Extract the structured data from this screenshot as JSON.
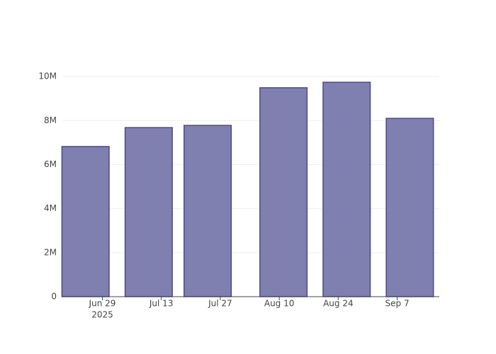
{
  "chart_data": {
    "type": "bar",
    "x": [
      "2025-06-25",
      "2025-07-10",
      "2025-07-24",
      "2025-08-11",
      "2025-08-26",
      "2025-09-10"
    ],
    "values": [
      6820000,
      7680000,
      7780000,
      9490000,
      9740000,
      8100000
    ],
    "color": "#7f7fb0",
    "edge_color": "#4b4b8c",
    "xlim": [
      "2025-06-19T12:00:00Z",
      "2025-09-17T00:00:00Z"
    ],
    "xticks": [
      {
        "value": "2025-06-29",
        "label": "Jun 29"
      },
      {
        "value": "2025-07-13",
        "label": "Jul 13"
      },
      {
        "value": "2025-07-27",
        "label": "Jul 27"
      },
      {
        "value": "2025-08-10",
        "label": "Aug 10"
      },
      {
        "value": "2025-08-24",
        "label": "Aug 24"
      },
      {
        "value": "2025-09-07",
        "label": "Sep 7"
      }
    ],
    "year_label": "2025",
    "ylim": [
      0,
      10260000
    ],
    "yticks": [
      0,
      {
        "value": 2000000,
        "label": "2M"
      },
      {
        "value": 4000000,
        "label": "4M"
      },
      {
        "value": 6000000,
        "label": "6M"
      },
      {
        "value": 8000000,
        "label": "8M"
      },
      {
        "value": 10000000,
        "label": "10M"
      }
    ],
    "grid": true
  }
}
